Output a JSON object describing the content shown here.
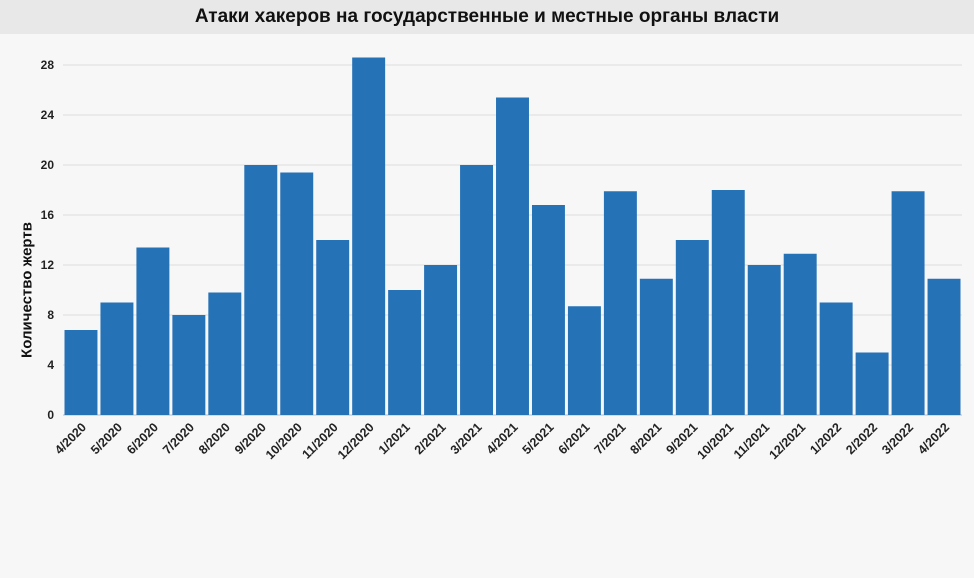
{
  "chart_data": {
    "type": "bar",
    "title": "Атаки хакеров на государственные и местные органы власти",
    "xlabel": "",
    "ylabel": "Количество жертв",
    "ylim": [
      0,
      30
    ],
    "yticks": [
      0,
      4,
      8,
      12,
      16,
      20,
      24,
      28
    ],
    "grid": true,
    "bar_color": "#2672b7",
    "categories": [
      "4/2020",
      "5/2020",
      "6/2020",
      "7/2020",
      "8/2020",
      "9/2020",
      "10/2020",
      "11/2020",
      "12/2020",
      "1/2021",
      "2/2021",
      "3/2021",
      "4/2021",
      "5/2021",
      "6/2021",
      "7/2021",
      "8/2021",
      "9/2021",
      "10/2021",
      "11/2021",
      "12/2021",
      "1/2022",
      "2/2022",
      "3/2022",
      "4/2022"
    ],
    "values": [
      6.8,
      9,
      13.4,
      8,
      9.8,
      20,
      19.4,
      14,
      28.6,
      10,
      12,
      20,
      25.4,
      16.8,
      8.7,
      17.9,
      10.9,
      14,
      18,
      12,
      12.9,
      9,
      5,
      17.9,
      10.9
    ]
  }
}
